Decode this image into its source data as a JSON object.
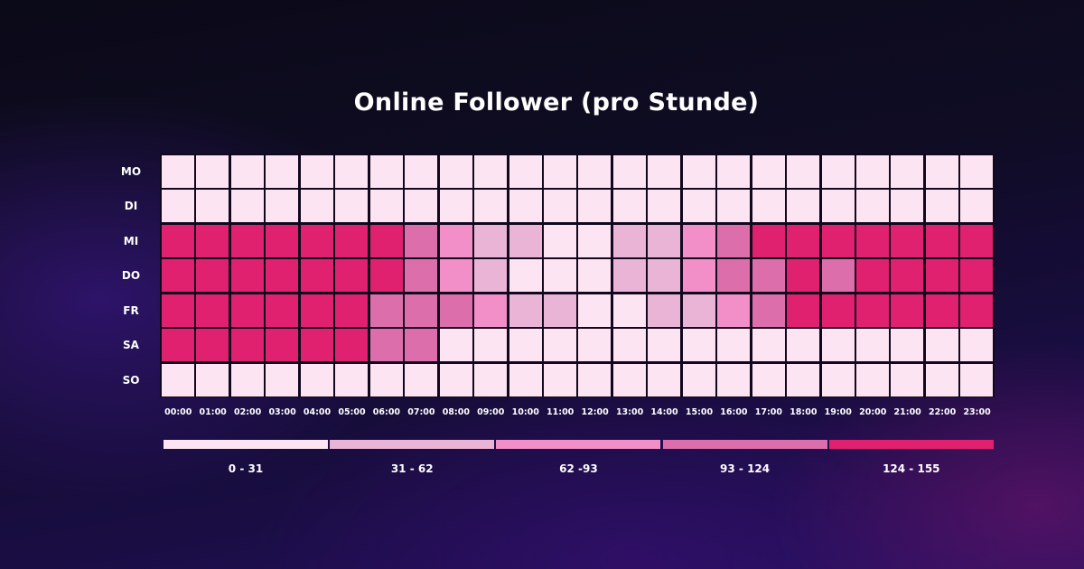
{
  "chart_data": {
    "type": "heatmap",
    "title": "Online Follower (pro Stunde)",
    "rows": [
      "MO",
      "DI",
      "MI",
      "DO",
      "FR",
      "SA",
      "SO"
    ],
    "columns": [
      "00:00",
      "01:00",
      "02:00",
      "03:00",
      "04:00",
      "05:00",
      "06:00",
      "07:00",
      "08:00",
      "09:00",
      "10:00",
      "11:00",
      "12:00",
      "13:00",
      "14:00",
      "15:00",
      "16:00",
      "17:00",
      "18:00",
      "19:00",
      "20:00",
      "21:00",
      "22:00",
      "23:00"
    ],
    "value_bins": [
      {
        "label": "0 - 31",
        "color": "#fce4f2"
      },
      {
        "label": "31 - 62",
        "color": "#eab4d6"
      },
      {
        "label": "62 -93",
        "color": "#f38fc8"
      },
      {
        "label": "93 - 124",
        "color": "#dc6fab"
      },
      {
        "label": "124 - 155",
        "color": "#e0216f"
      }
    ],
    "bin_index": [
      [
        0,
        0,
        0,
        0,
        0,
        0,
        0,
        0,
        0,
        0,
        0,
        0,
        0,
        0,
        0,
        0,
        0,
        0,
        0,
        0,
        0,
        0,
        0,
        0
      ],
      [
        0,
        0,
        0,
        0,
        0,
        0,
        0,
        0,
        0,
        0,
        0,
        0,
        0,
        0,
        0,
        0,
        0,
        0,
        0,
        0,
        0,
        0,
        0,
        0
      ],
      [
        4,
        4,
        4,
        4,
        4,
        4,
        4,
        3,
        2,
        1,
        1,
        0,
        0,
        1,
        1,
        2,
        3,
        4,
        4,
        4,
        4,
        4,
        4,
        4
      ],
      [
        4,
        4,
        4,
        4,
        4,
        4,
        4,
        3,
        2,
        1,
        0,
        0,
        0,
        1,
        1,
        2,
        3,
        3,
        4,
        3,
        4,
        4,
        4,
        4
      ],
      [
        4,
        4,
        4,
        4,
        4,
        4,
        3,
        3,
        3,
        2,
        1,
        1,
        0,
        0,
        1,
        1,
        2,
        3,
        4,
        4,
        4,
        4,
        4,
        4
      ],
      [
        4,
        4,
        4,
        4,
        4,
        4,
        3,
        3,
        0,
        0,
        0,
        0,
        0,
        0,
        0,
        0,
        0,
        0,
        0,
        0,
        0,
        0,
        0,
        0
      ],
      [
        0,
        0,
        0,
        0,
        0,
        0,
        0,
        0,
        0,
        0,
        0,
        0,
        0,
        0,
        0,
        0,
        0,
        0,
        0,
        0,
        0,
        0,
        0,
        0
      ]
    ],
    "cell_colors": {
      "lightest_variants": [
        "#fde6f3",
        "#fff4fa"
      ],
      "border": "#12081e"
    }
  }
}
